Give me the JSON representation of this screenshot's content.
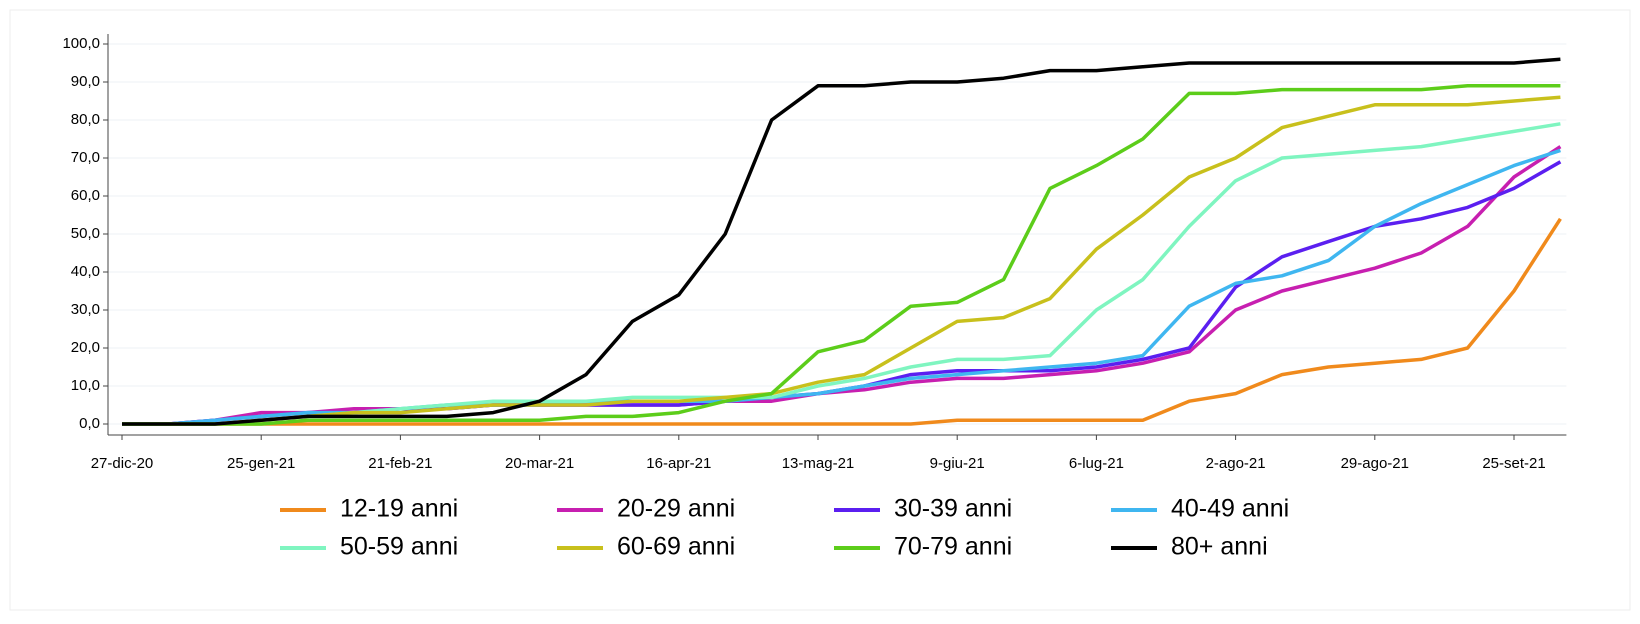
{
  "chart_data": {
    "type": "line",
    "categories": [
      "27-dic-20",
      null,
      null,
      "25-gen-21",
      null,
      null,
      "21-feb-21",
      null,
      null,
      "20-mar-21",
      null,
      null,
      "16-apr-21",
      null,
      null,
      "13-mag-21",
      null,
      null,
      "9-giu-21",
      null,
      null,
      "6-lug-21",
      null,
      null,
      "2-ago-21",
      null,
      null,
      "29-ago-21",
      null,
      null,
      "25-set-21",
      null
    ],
    "ylim": [
      0,
      100
    ],
    "yticks": [
      {
        "value": 0,
        "label": "0,0"
      },
      {
        "value": 10,
        "label": "10,0"
      },
      {
        "value": 20,
        "label": "20,0"
      },
      {
        "value": 30,
        "label": "30,0"
      },
      {
        "value": 40,
        "label": "40,0"
      },
      {
        "value": 50,
        "label": "50,0"
      },
      {
        "value": 60,
        "label": "60,0"
      },
      {
        "value": 70,
        "label": "70,0"
      },
      {
        "value": 80,
        "label": "80,0"
      },
      {
        "value": 90,
        "label": "90,0"
      },
      {
        "value": 100,
        "label": "100,0"
      }
    ],
    "grid": true,
    "legend": "bottom",
    "series": [
      {
        "name": "12-19 anni",
        "color": "#f08a1c",
        "values": [
          0,
          0,
          0,
          0,
          0,
          0,
          0,
          0,
          0,
          0,
          0,
          0,
          0,
          0,
          0,
          0,
          0,
          0,
          1,
          1,
          1,
          1,
          1,
          6,
          8,
          13,
          15,
          16,
          17,
          20,
          35,
          54
        ]
      },
      {
        "name": "20-29 anni",
        "color": "#c71fb0",
        "values": [
          0,
          0,
          1,
          3,
          3,
          4,
          4,
          4,
          5,
          5,
          5,
          5,
          5,
          6,
          6,
          8,
          9,
          11,
          12,
          12,
          13,
          14,
          16,
          19,
          30,
          35,
          38,
          41,
          45,
          52,
          65,
          73
        ]
      },
      {
        "name": "30-39 anni",
        "color": "#5b1ff0",
        "values": [
          0,
          0,
          1,
          2,
          3,
          3,
          4,
          4,
          5,
          5,
          5,
          5,
          5,
          6,
          7,
          8,
          10,
          13,
          14,
          14,
          14,
          15,
          17,
          20,
          36,
          44,
          48,
          52,
          54,
          57,
          62,
          69
        ]
      },
      {
        "name": "40-49 anni",
        "color": "#3fb6f0",
        "values": [
          0,
          0,
          1,
          2,
          3,
          3,
          4,
          5,
          5,
          5,
          6,
          6,
          6,
          6,
          7,
          8,
          10,
          12,
          13,
          14,
          15,
          16,
          18,
          31,
          37,
          39,
          43,
          52,
          58,
          63,
          68,
          72
        ]
      },
      {
        "name": "50-59 anni",
        "color": "#7ff5c0",
        "values": [
          0,
          0,
          0,
          1,
          2,
          3,
          4,
          5,
          6,
          6,
          6,
          7,
          7,
          7,
          7,
          10,
          12,
          15,
          17,
          17,
          18,
          30,
          38,
          52,
          64,
          70,
          71,
          72,
          73,
          75,
          77,
          79
        ]
      },
      {
        "name": "60-69 anni",
        "color": "#c8c01c",
        "values": [
          0,
          0,
          0,
          1,
          2,
          3,
          3,
          4,
          5,
          5,
          5,
          6,
          6,
          7,
          8,
          11,
          13,
          20,
          27,
          28,
          33,
          46,
          55,
          65,
          70,
          78,
          81,
          84,
          84,
          84,
          85,
          86
        ]
      },
      {
        "name": "70-79 anni",
        "color": "#5ccd1a",
        "values": [
          0,
          0,
          0,
          0,
          1,
          1,
          1,
          1,
          1,
          1,
          2,
          2,
          3,
          6,
          8,
          19,
          22,
          31,
          32,
          38,
          62,
          68,
          75,
          87,
          87,
          88,
          88,
          88,
          88,
          89,
          89,
          89
        ]
      },
      {
        "name": "80+ anni",
        "color": "#000000",
        "values": [
          0,
          0,
          0,
          1,
          2,
          2,
          2,
          2,
          3,
          6,
          13,
          27,
          34,
          50,
          80,
          89,
          89,
          90,
          90,
          91,
          93,
          93,
          94,
          95,
          95,
          95,
          95,
          95,
          95,
          95,
          95,
          96
        ]
      }
    ]
  }
}
